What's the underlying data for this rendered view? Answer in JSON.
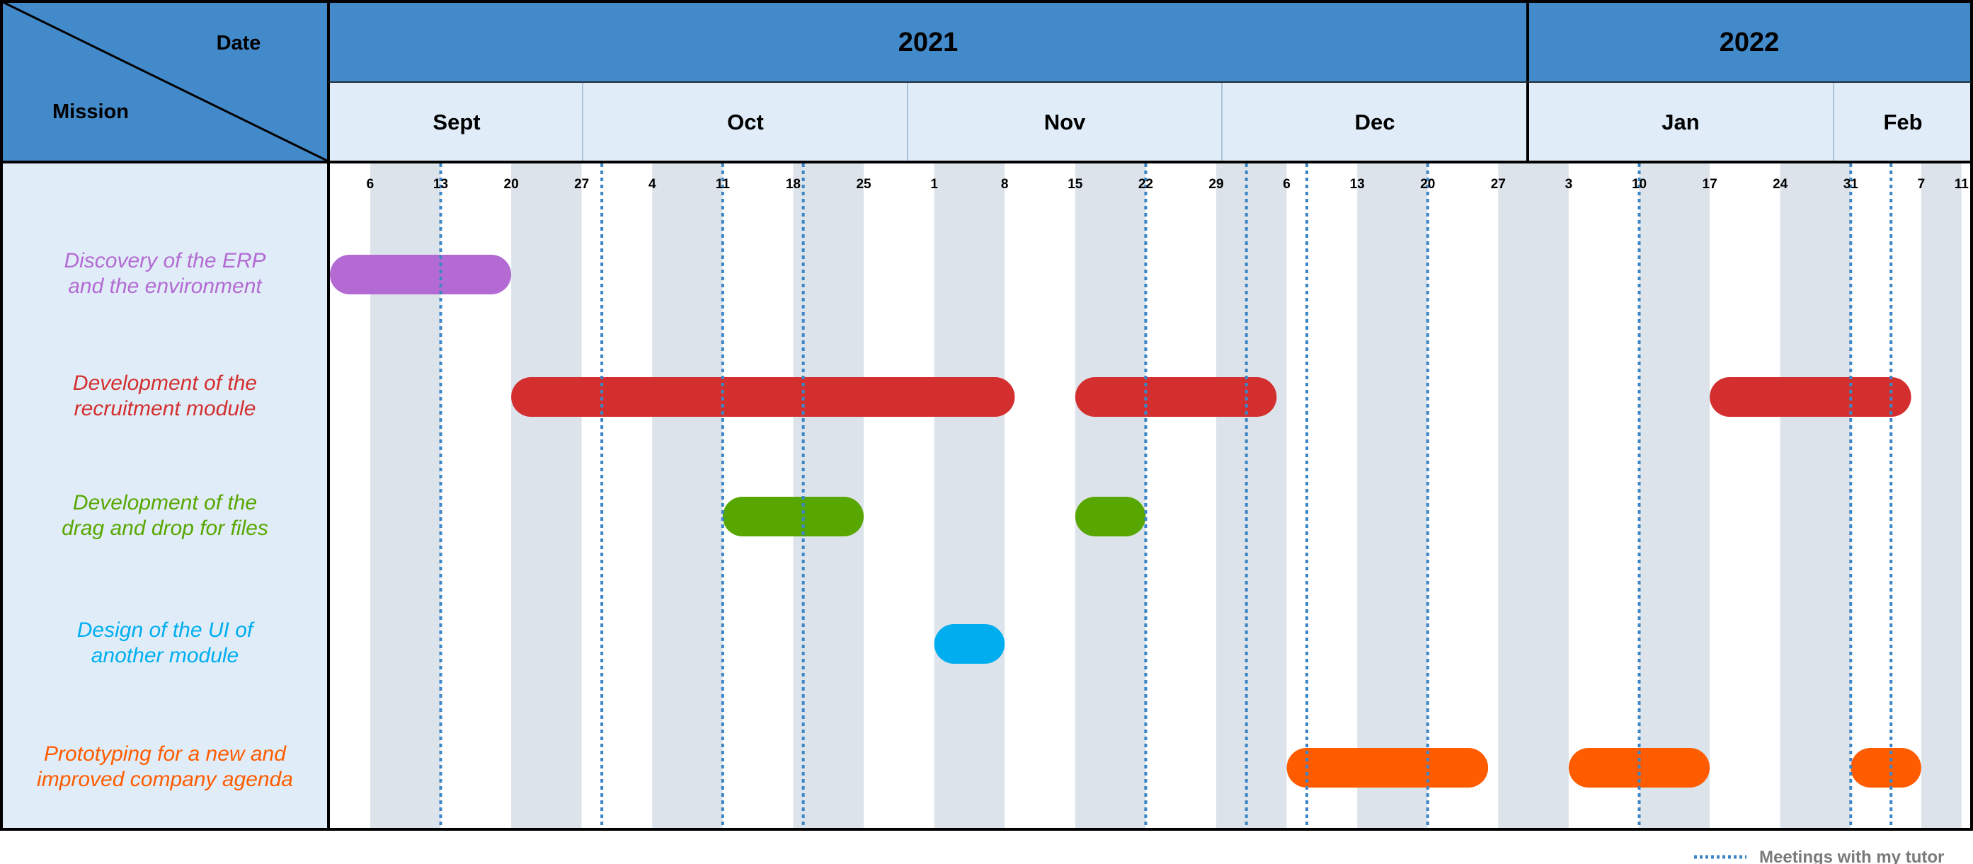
{
  "header": {
    "date_label": "Date",
    "mission_label": "Mission",
    "years": [
      "2021",
      "2022"
    ],
    "months": [
      "Sept",
      "Oct",
      "Nov",
      "Dec",
      "Jan",
      "Feb"
    ]
  },
  "colors": {
    "header_blue": "#428AC9",
    "month_bg": "#E0EDF9",
    "left_bg": "#E0EDF9",
    "week_shade": "#DCE3EA",
    "week_white": "#FFFFFF",
    "meeting_line": "#3D86C6"
  },
  "legend": {
    "label": "Meetings with my tutor"
  },
  "chart_data": {
    "type": "gantt",
    "timeline_start": "2021-09-02",
    "timeline_end": "2022-02-12",
    "week_ticks": [
      {
        "date": "2021-09-06",
        "label": "6"
      },
      {
        "date": "2021-09-13",
        "label": "13"
      },
      {
        "date": "2021-09-20",
        "label": "20"
      },
      {
        "date": "2021-09-27",
        "label": "27"
      },
      {
        "date": "2021-10-04",
        "label": "4"
      },
      {
        "date": "2021-10-11",
        "label": "11"
      },
      {
        "date": "2021-10-18",
        "label": "18"
      },
      {
        "date": "2021-10-25",
        "label": "25"
      },
      {
        "date": "2021-11-01",
        "label": "1"
      },
      {
        "date": "2021-11-08",
        "label": "8"
      },
      {
        "date": "2021-11-15",
        "label": "15"
      },
      {
        "date": "2021-11-22",
        "label": "22"
      },
      {
        "date": "2021-11-29",
        "label": "29"
      },
      {
        "date": "2021-12-06",
        "label": "6"
      },
      {
        "date": "2021-12-13",
        "label": "13"
      },
      {
        "date": "2021-12-20",
        "label": "20"
      },
      {
        "date": "2021-12-27",
        "label": "27"
      },
      {
        "date": "2022-01-03",
        "label": "3"
      },
      {
        "date": "2022-01-10",
        "label": "10"
      },
      {
        "date": "2022-01-17",
        "label": "17"
      },
      {
        "date": "2022-01-24",
        "label": "24"
      },
      {
        "date": "2022-01-31",
        "label": "31"
      },
      {
        "date": "2022-02-07",
        "label": "7"
      },
      {
        "date": "2022-02-11",
        "label": "11"
      }
    ],
    "missions": [
      {
        "name": "Discovery of the ERP\nand the environment",
        "color": "#B36BD3",
        "bars": [
          {
            "start": "2021-09-02",
            "end": "2021-09-20"
          }
        ]
      },
      {
        "name": "Development of the\nrecruitment module",
        "color": "#D32F2F",
        "bars": [
          {
            "start": "2021-09-20",
            "end": "2021-11-09"
          },
          {
            "start": "2021-11-15",
            "end": "2021-12-05"
          },
          {
            "start": "2022-01-17",
            "end": "2022-02-06"
          }
        ]
      },
      {
        "name": "Development of the\ndrag and drop for files",
        "color": "#58A600",
        "bars": [
          {
            "start": "2021-10-11",
            "end": "2021-10-25"
          },
          {
            "start": "2021-11-15",
            "end": "2021-11-22"
          }
        ]
      },
      {
        "name": "Design of the UI of\nanother module",
        "color": "#00AEF0",
        "bars": [
          {
            "start": "2021-11-01",
            "end": "2021-11-08"
          }
        ]
      },
      {
        "name": "Prototyping for a new and\nimproved company agenda",
        "color": "#FF5C00",
        "bars": [
          {
            "start": "2021-12-06",
            "end": "2021-12-26"
          },
          {
            "start": "2022-01-03",
            "end": "2022-01-17"
          },
          {
            "start": "2022-01-31",
            "end": "2022-02-07"
          }
        ]
      }
    ],
    "meetings": [
      "2021-09-13",
      "2021-09-29",
      "2021-10-11",
      "2021-10-19",
      "2021-11-22",
      "2021-12-02",
      "2021-12-08",
      "2021-12-20",
      "2022-01-10",
      "2022-01-31",
      "2022-02-04"
    ]
  }
}
